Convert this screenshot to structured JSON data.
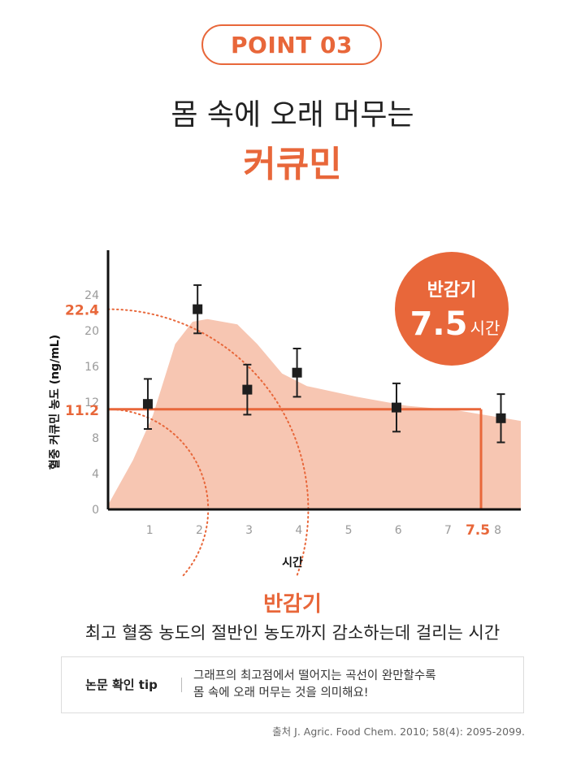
{
  "header": {
    "badge": "POINT 03",
    "headline": "몸 속에 오래 머무는",
    "headline_accent": "커큐민"
  },
  "chart_data": {
    "type": "line",
    "xlabel": "시간",
    "ylabel": "혈중 커큐민 농도 (ng/mL)",
    "xlim": [
      0,
      8.3
    ],
    "ylim": [
      0,
      29
    ],
    "x_ticks": [
      "1",
      "2",
      "3",
      "4",
      "5",
      "6",
      "7",
      "8"
    ],
    "y_ticks": [
      "0",
      "4",
      "8",
      "12",
      "16",
      "20",
      "24"
    ],
    "peak_value": "22.4",
    "half_value": "11.2",
    "half_life_tick": "7.5",
    "half_life_x": 7.5,
    "peak": 22.4,
    "half": 11.2,
    "points": [
      {
        "x": 0.8,
        "y": 11.8,
        "err": 2.8
      },
      {
        "x": 1.8,
        "y": 22.4,
        "err": 2.7
      },
      {
        "x": 2.8,
        "y": 13.4,
        "err": 2.8
      },
      {
        "x": 3.8,
        "y": 15.3,
        "err": 2.7
      },
      {
        "x": 5.8,
        "y": 11.4,
        "err": 2.7
      },
      {
        "x": 7.9,
        "y": 10.2,
        "err": 2.7
      }
    ],
    "area": [
      {
        "x": 0,
        "y": 0.5
      },
      {
        "x": 0.5,
        "y": 5.5
      },
      {
        "x": 0.9,
        "y": 10.5
      },
      {
        "x": 1.35,
        "y": 18.5
      },
      {
        "x": 1.7,
        "y": 21.0
      },
      {
        "x": 2.0,
        "y": 21.3
      },
      {
        "x": 2.6,
        "y": 20.7
      },
      {
        "x": 3.0,
        "y": 18.5
      },
      {
        "x": 3.5,
        "y": 15.2
      },
      {
        "x": 4.0,
        "y": 13.8
      },
      {
        "x": 5.0,
        "y": 12.6
      },
      {
        "x": 6.0,
        "y": 11.6
      },
      {
        "x": 7.0,
        "y": 11.1
      },
      {
        "x": 8.3,
        "y": 9.9
      }
    ],
    "callout": {
      "title": "반감기",
      "value": "7.5",
      "unit": "시간"
    },
    "colors": {
      "accent": "#e8673a",
      "area": "#f7c6b2",
      "marker": "#1e1e1e",
      "tick": "#9a9a9a"
    }
  },
  "definition": {
    "title": "반감기",
    "text": "최고 혈중 농도의 절반인 농도까지 감소하는데 걸리는 시간"
  },
  "tip": {
    "label": "논문 확인 tip",
    "line1": "그래프의 최고점에서 떨어지는 곡선이 완만할수록",
    "line2": "몸 속에 오래 머무는 것을 의미해요!"
  },
  "source": "출처 J. Agric. Food Chem. 2010; 58(4): 2095-2099."
}
